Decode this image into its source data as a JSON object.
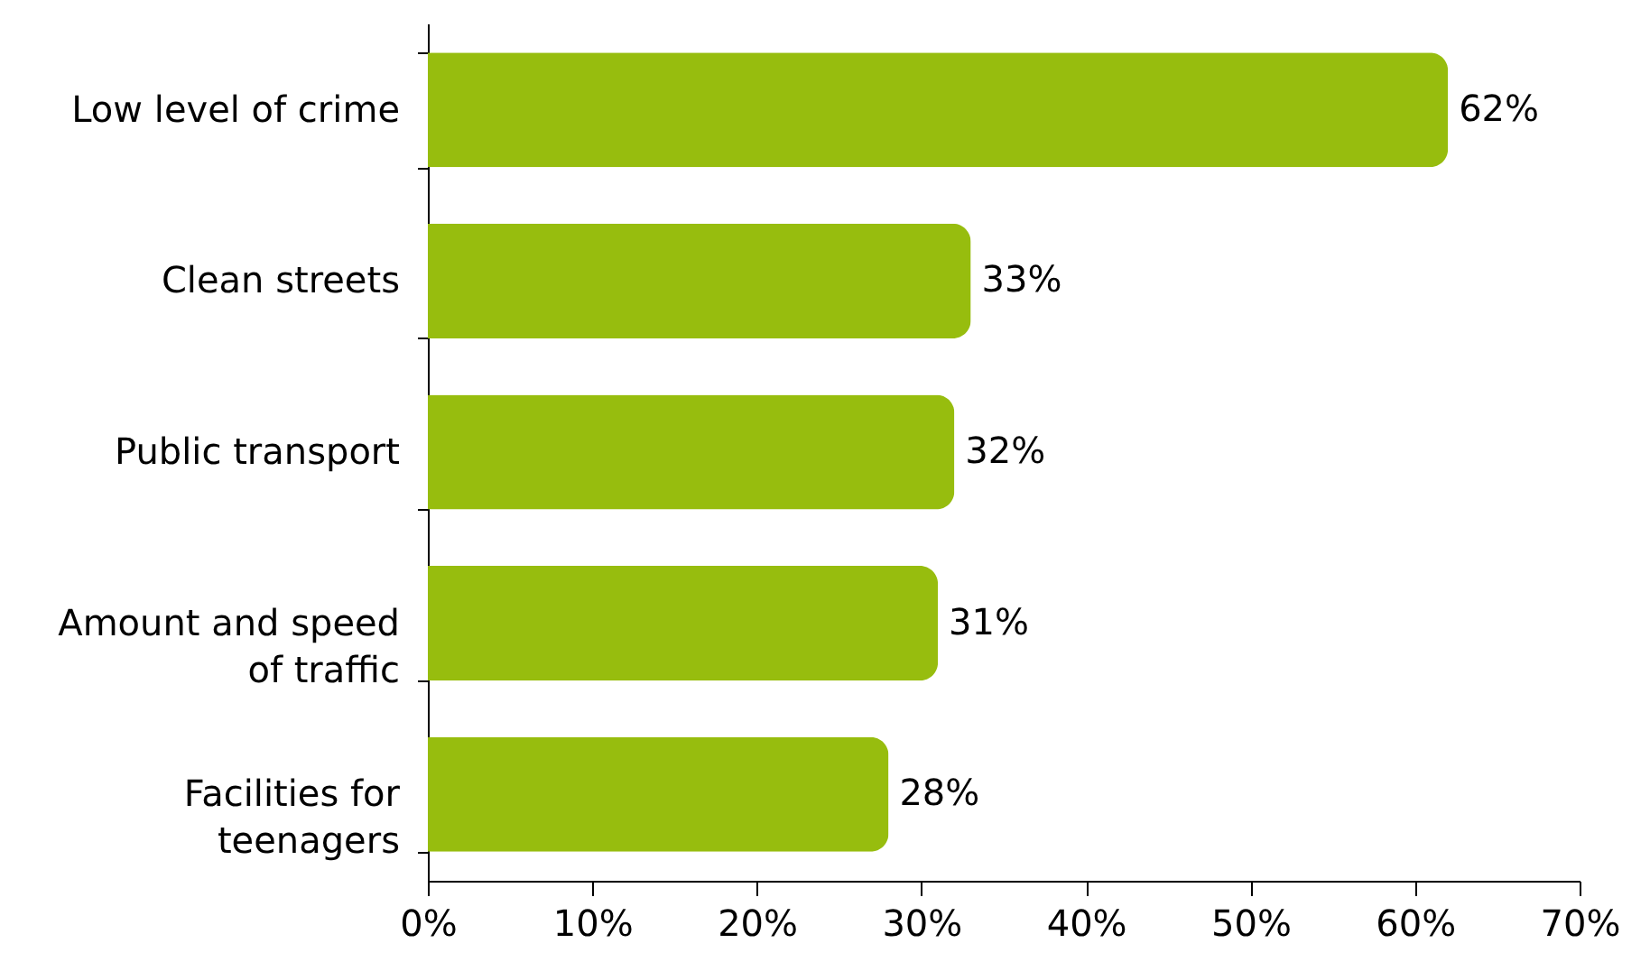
{
  "chart_data": {
    "type": "bar",
    "orientation": "horizontal",
    "categories": [
      "Low level of crime",
      "Clean streets",
      "Public transport",
      "Amount and speed of traffic",
      "Facilities for teenagers"
    ],
    "values": [
      62,
      33,
      32,
      31,
      28
    ],
    "value_labels": [
      "62%",
      "33%",
      "32%",
      "31%",
      "28%"
    ],
    "color": "#97bd0e",
    "xlim": [
      0,
      70
    ],
    "xticks": [
      {
        "value": 0,
        "label": "0%"
      },
      {
        "value": 10,
        "label": "10%"
      },
      {
        "value": 20,
        "label": "20%"
      },
      {
        "value": 30,
        "label": "30%"
      },
      {
        "value": 40,
        "label": "40%"
      },
      {
        "value": 50,
        "label": "50%"
      },
      {
        "value": 60,
        "label": "60%"
      },
      {
        "value": 70,
        "label": "70%"
      }
    ],
    "grid": false
  }
}
